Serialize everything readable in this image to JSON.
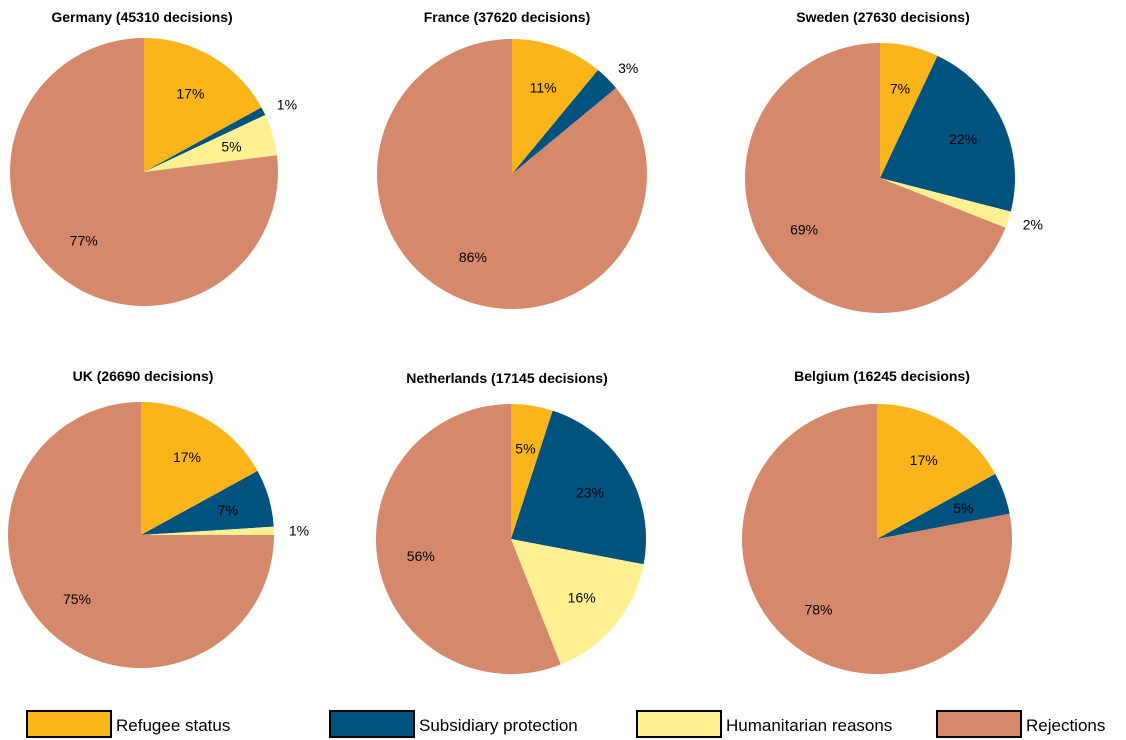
{
  "chart_data": {
    "type": "pie",
    "colors": {
      "Refugee status": "#FBB41A",
      "Subsidiary protection": "#00527F",
      "Humanitarian reasons": "#FFF193",
      "Rejections": "#D5886A"
    },
    "legend": {
      "position": "bottom",
      "entries": [
        "Refugee status",
        "Subsidiary protection",
        "Humanitarian reasons",
        "Rejections"
      ]
    },
    "charts": [
      {
        "title": "Germany (45310 decisions)",
        "slices": [
          {
            "category": "Refugee status",
            "value": 17,
            "label": "17%"
          },
          {
            "category": "Subsidiary protection",
            "value": 1,
            "label": "1%"
          },
          {
            "category": "Humanitarian reasons",
            "value": 5,
            "label": "5%"
          },
          {
            "category": "Rejections",
            "value": 77,
            "label": "77%"
          }
        ]
      },
      {
        "title": "France (37620 decisions)",
        "slices": [
          {
            "category": "Refugee status",
            "value": 11,
            "label": "11%"
          },
          {
            "category": "Subsidiary protection",
            "value": 3,
            "label": "3%"
          },
          {
            "category": "Rejections",
            "value": 86,
            "label": "86%"
          }
        ]
      },
      {
        "title": "Sweden (27630 decisions)",
        "slices": [
          {
            "category": "Refugee status",
            "value": 7,
            "label": "7%"
          },
          {
            "category": "Subsidiary protection",
            "value": 22,
            "label": "22%"
          },
          {
            "category": "Humanitarian reasons",
            "value": 2,
            "label": "2%"
          },
          {
            "category": "Rejections",
            "value": 69,
            "label": "69%"
          }
        ]
      },
      {
        "title": "UK (26690 decisions)",
        "slices": [
          {
            "category": "Refugee status",
            "value": 17,
            "label": "17%"
          },
          {
            "category": "Subsidiary protection",
            "value": 7,
            "label": "7%"
          },
          {
            "category": "Humanitarian reasons",
            "value": 1,
            "label": "1%"
          },
          {
            "category": "Rejections",
            "value": 75,
            "label": "75%"
          }
        ]
      },
      {
        "title": "Netherlands (17145 decisions)",
        "slices": [
          {
            "category": "Refugee status",
            "value": 5,
            "label": "5%"
          },
          {
            "category": "Subsidiary protection",
            "value": 23,
            "label": "23%"
          },
          {
            "category": "Humanitarian reasons",
            "value": 16,
            "label": "16%"
          },
          {
            "category": "Rejections",
            "value": 56,
            "label": "56%"
          }
        ]
      },
      {
        "title": "Belgium (16245 decisions)",
        "slices": [
          {
            "category": "Refugee status",
            "value": 17,
            "label": "17%"
          },
          {
            "category": "Subsidiary protection",
            "value": 5,
            "label": "5%"
          },
          {
            "category": "Rejections",
            "value": 78,
            "label": "78%"
          }
        ]
      }
    ]
  }
}
